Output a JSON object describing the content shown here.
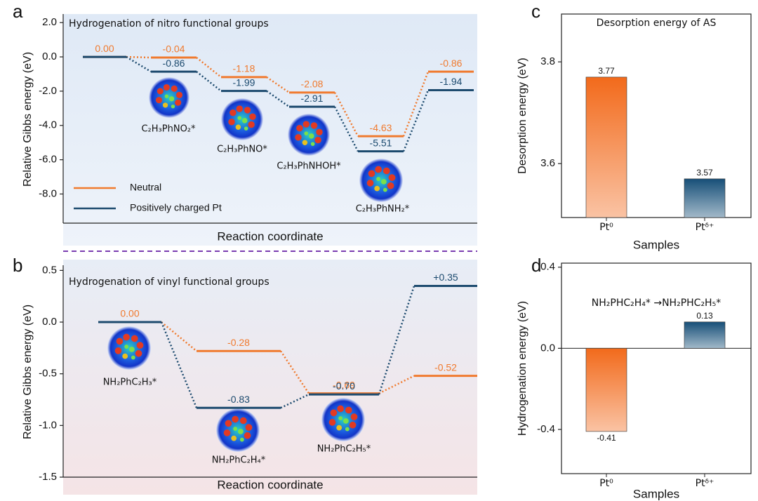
{
  "chart_data": [
    {
      "type": "energy",
      "panel": "a",
      "title": "Hydrogenation of nitro functional groups",
      "xlabel": "Reaction coordinate",
      "ylabel": "Relative Gibbs energy (eV)",
      "categories": [
        null,
        "C₂H₃PhNO₂*",
        "C₂H₃PhNO*",
        "C₂H₃PhNHOH*",
        "C₂H₃PhNH₂*",
        null
      ],
      "series": [
        {
          "name": "Neutral",
          "color": "#f07a2e",
          "values": [
            0,
            -0.04,
            -1.18,
            -2.08,
            -4.63,
            -0.86
          ],
          "value_labels": [
            "0.00",
            "-0.04",
            "-1.18",
            "-2.08",
            "-4.63",
            "-0.86"
          ]
        },
        {
          "name": "Positively charged Pt",
          "color": "#1c4a6e",
          "values": [
            0,
            -0.86,
            -1.99,
            -2.91,
            -5.51,
            -1.94
          ],
          "value_labels": [
            null,
            "-0.86",
            "-1.99",
            "-2.91",
            "-5.51",
            "-1.94"
          ]
        }
      ],
      "ylim": [
        -9.7,
        2.5
      ],
      "yticks": [
        {
          "value": 2,
          "label": "2.0"
        },
        {
          "value": 0,
          "label": "0.0"
        },
        {
          "value": -2,
          "label": "-2.0"
        },
        {
          "value": -4,
          "label": "-4.0"
        },
        {
          "value": -6,
          "label": "-6.0"
        },
        {
          "value": -8,
          "label": "-8.0"
        }
      ],
      "legend": "lower left"
    },
    {
      "type": "energy",
      "panel": "b",
      "title": "Hydrogenation of vinyl  functional groups",
      "xlabel": "Reaction coordinate",
      "ylabel": "Relative Gibbs energy (eV)",
      "categories": [
        "NH₂PhC₂H₃*",
        "NH₂PhC₂H₄*",
        "NH₂PhC₂H₅*",
        null
      ],
      "series": [
        {
          "name": "Neutral",
          "color": "#f07a2e",
          "values": [
            0,
            -0.28,
            -0.69,
            -0.52
          ],
          "value_labels": [
            "0.00",
            "-0.28",
            "-0.69",
            "-0.52"
          ]
        },
        {
          "name": "Positively charged Pt",
          "color": "#1c4a6e",
          "values": [
            0,
            -0.83,
            -0.7,
            0.35
          ],
          "value_labels": [
            null,
            "-0.83",
            "-0.70",
            "+0.35"
          ]
        }
      ],
      "ylim": [
        -1.5,
        0.55
      ],
      "yticks": [
        {
          "value": 0.5,
          "label": "0.5"
        },
        {
          "value": 0,
          "label": "0.0"
        },
        {
          "value": -0.5,
          "label": "-0.5"
        },
        {
          "value": -1,
          "label": "-1.0"
        },
        {
          "value": -1.5,
          "label": "-1.5"
        }
      ]
    },
    {
      "type": "bar",
      "panel": "c",
      "title": "Desorption energy of AS",
      "xlabel": "Samples",
      "ylabel": "Desorption energy (eV)",
      "categories": [
        "Pt⁰",
        "Ptᵟ⁺"
      ],
      "values": [
        3.77,
        3.57
      ],
      "colors": [
        "#f26a1b",
        "#174f78"
      ],
      "ylim": [
        3.494,
        3.894
      ],
      "yticks": [
        3.8,
        3.6
      ]
    },
    {
      "type": "bar",
      "panel": "d",
      "title": "NH₂PHC₂H₄* →NH₂PHC₂H₅*",
      "xlabel": "Samples",
      "ylabel": "Hydrogenation energy (eV)",
      "categories": [
        "Pt⁰",
        "Ptᵟ⁺"
      ],
      "values": [
        -0.41,
        0.13
      ],
      "colors": [
        "#f26a1b",
        "#174f78"
      ],
      "ylim": [
        -0.618,
        0.42
      ],
      "yticks": [
        0.4,
        {
          "value": 0,
          "label": "0.0"
        },
        -0.4
      ]
    }
  ]
}
